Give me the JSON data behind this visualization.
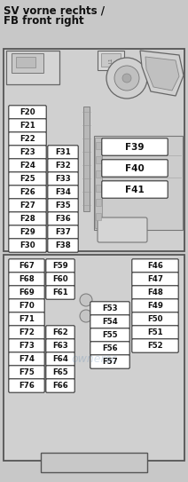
{
  "title_line1": "SV vorne rechts /",
  "title_line2": "FB front right",
  "bg_color": "#c8c8c8",
  "fuse_bg": "#ffffff",
  "fuse_border": "#333333",
  "box_border": "#555555",
  "text_color": "#111111",
  "left_col1_labels": [
    "F20",
    "F21",
    "F22",
    "F23",
    "F24",
    "F25",
    "F26",
    "F27",
    "F28",
    "F29",
    "F30"
  ],
  "left_col2_labels": [
    "F31",
    "F32",
    "F33",
    "F34",
    "F35",
    "F36",
    "F37",
    "F38"
  ],
  "right_large_labels": [
    "F39",
    "F40",
    "F41"
  ],
  "bottom_left_col1_labels": [
    "F67",
    "F68",
    "F69",
    "F70",
    "F71",
    "F72",
    "F73",
    "F74",
    "F75",
    "F76"
  ],
  "bottom_left_col2_labels": [
    "F59",
    "F60",
    "F61",
    "",
    "",
    "F62",
    "F63",
    "F64",
    "F65",
    "F66"
  ],
  "bottom_mid_labels": [
    "F53",
    "F54",
    "F55",
    "F56",
    "F57"
  ],
  "bottom_right_labels": [
    "F46",
    "F47",
    "F48",
    "F49",
    "F50",
    "F51",
    "F52"
  ]
}
